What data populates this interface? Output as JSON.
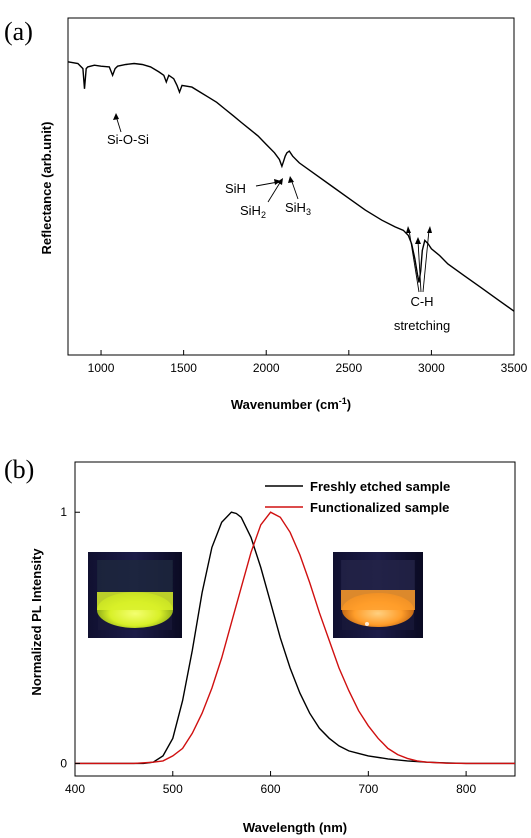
{
  "chart_data": [
    {
      "type": "line",
      "panel_label": "(a)",
      "xlabel": "Wavenumber",
      "xlabel_unit_base": "cm",
      "xlabel_unit_exp": "-1",
      "ylabel": "Reflectance (arb.unit)",
      "xlim": [
        800,
        3500
      ],
      "ylim": [
        0,
        1
      ],
      "xticks": [
        1000,
        1500,
        2000,
        2500,
        3000,
        3500
      ],
      "yticks": [],
      "series": [
        {
          "color": "#000000",
          "x": [
            800,
            860,
            890,
            900,
            910,
            920,
            960,
            1000,
            1050,
            1070,
            1085,
            1100,
            1150,
            1200,
            1250,
            1300,
            1350,
            1380,
            1395,
            1410,
            1440,
            1460,
            1475,
            1490,
            1550,
            1600,
            1650,
            1700,
            1750,
            1800,
            1850,
            1900,
            1950,
            2000,
            2050,
            2080,
            2095,
            2105,
            2115,
            2125,
            2140,
            2160,
            2200,
            2300,
            2400,
            2500,
            2600,
            2700,
            2780,
            2830,
            2860,
            2880,
            2900,
            2915,
            2925,
            2935,
            2945,
            2960,
            2980,
            3000,
            3050,
            3100,
            3200,
            3300,
            3400,
            3500
          ],
          "y": [
            0.87,
            0.865,
            0.85,
            0.79,
            0.85,
            0.855,
            0.86,
            0.857,
            0.855,
            0.83,
            0.85,
            0.857,
            0.862,
            0.865,
            0.862,
            0.855,
            0.84,
            0.83,
            0.81,
            0.83,
            0.82,
            0.8,
            0.78,
            0.8,
            0.795,
            0.78,
            0.765,
            0.75,
            0.73,
            0.71,
            0.69,
            0.67,
            0.65,
            0.625,
            0.6,
            0.58,
            0.56,
            0.575,
            0.59,
            0.6,
            0.605,
            0.59,
            0.57,
            0.535,
            0.5,
            0.465,
            0.43,
            0.4,
            0.38,
            0.37,
            0.355,
            0.33,
            0.285,
            0.24,
            0.215,
            0.25,
            0.31,
            0.34,
            0.33,
            0.315,
            0.295,
            0.27,
            0.235,
            0.2,
            0.165,
            0.13
          ]
        }
      ],
      "annotations": [
        {
          "text": "Si-O-Si"
        },
        {
          "text": "SiH"
        },
        {
          "text": "SiH",
          "subscript": "2"
        },
        {
          "text": "SiH",
          "subscript": "3"
        },
        {
          "text": "C-H"
        },
        {
          "text": "stretching"
        }
      ]
    },
    {
      "type": "line",
      "panel_label": "(b)",
      "xlabel": "Wavelength (nm)",
      "ylabel": "Normalized PL Intensity",
      "xlim": [
        400,
        850
      ],
      "ylim": [
        -0.05,
        1.2
      ],
      "xticks": [
        400,
        500,
        600,
        700,
        800
      ],
      "yticks": [
        0,
        1
      ],
      "legend_position": "top-right",
      "series": [
        {
          "name": "Freshly etched sample",
          "color": "#000000",
          "x": [
            400,
            440,
            470,
            480,
            490,
            500,
            510,
            520,
            530,
            540,
            550,
            560,
            565,
            570,
            580,
            590,
            600,
            610,
            620,
            630,
            640,
            650,
            660,
            670,
            680,
            690,
            700,
            720,
            740,
            760,
            780,
            800,
            850
          ],
          "y": [
            0,
            0,
            0,
            0.005,
            0.03,
            0.1,
            0.25,
            0.45,
            0.68,
            0.86,
            0.96,
            1.0,
            0.995,
            0.98,
            0.9,
            0.78,
            0.64,
            0.5,
            0.38,
            0.28,
            0.2,
            0.14,
            0.1,
            0.07,
            0.05,
            0.04,
            0.03,
            0.018,
            0.01,
            0.005,
            0.002,
            0,
            0
          ]
        },
        {
          "name": "Functionalized sample",
          "color": "#d01010",
          "x": [
            400,
            460,
            480,
            490,
            500,
            510,
            520,
            530,
            540,
            550,
            560,
            570,
            580,
            590,
            600,
            610,
            620,
            630,
            640,
            650,
            660,
            670,
            680,
            690,
            700,
            710,
            720,
            730,
            740,
            750,
            760,
            780,
            800,
            850
          ],
          "y": [
            0,
            0,
            0.005,
            0.01,
            0.03,
            0.06,
            0.12,
            0.2,
            0.3,
            0.42,
            0.56,
            0.7,
            0.84,
            0.95,
            1.0,
            0.98,
            0.92,
            0.83,
            0.72,
            0.6,
            0.49,
            0.38,
            0.29,
            0.21,
            0.15,
            0.1,
            0.06,
            0.035,
            0.02,
            0.01,
            0.005,
            0.001,
            0,
            0
          ]
        }
      ],
      "insets": [
        {
          "name": "freshly-etched-vial-photo",
          "glow_color": "#d8f028"
        },
        {
          "name": "functionalized-vial-photo",
          "glow_color": "#ff9d2a"
        }
      ]
    }
  ]
}
